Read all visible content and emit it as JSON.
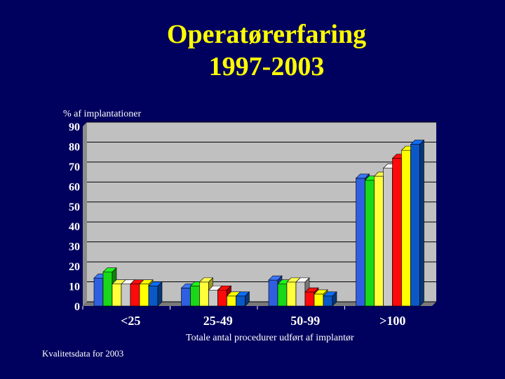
{
  "title_line1": "Operatørerfaring",
  "title_line2": "1997-2003",
  "footer": "Kvalitetsdata for 2003",
  "chart_data": {
    "type": "bar",
    "ylabel": "% af implantationer",
    "xlabel": "Totale antal procedurer udført af implantør",
    "ylim": [
      0,
      90
    ],
    "yticks": [
      0,
      10,
      20,
      30,
      40,
      50,
      60,
      70,
      80,
      90
    ],
    "grid": true,
    "categories": [
      "<25",
      "25-49",
      "50-99",
      ">100"
    ],
    "series": [
      {
        "color": "#2f5fe0",
        "values": [
          14,
          9,
          13,
          64
        ]
      },
      {
        "color": "#18d818",
        "values": [
          17,
          10,
          11,
          63
        ]
      },
      {
        "color": "#ffff3a",
        "values": [
          11,
          12,
          12,
          65
        ]
      },
      {
        "color": "#c8c8c8",
        "values": [
          11,
          8,
          12,
          69
        ]
      },
      {
        "color": "#ff0a0a",
        "values": [
          11,
          8,
          7,
          74
        ]
      },
      {
        "color": "#ffff00",
        "values": [
          11,
          5,
          6,
          78
        ]
      },
      {
        "color": "#0a58c8",
        "values": [
          10,
          5,
          5,
          81
        ]
      }
    ]
  }
}
